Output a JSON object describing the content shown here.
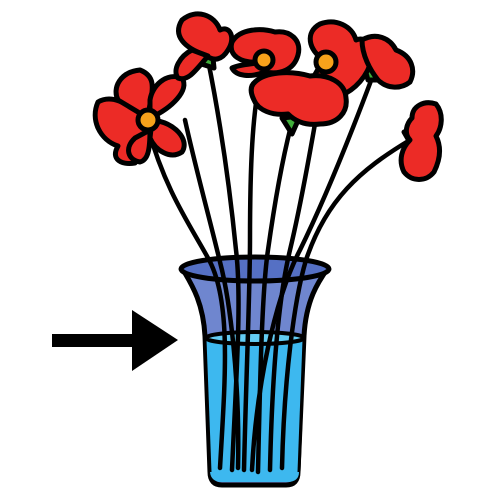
{
  "colors": {
    "background": "#ffffff",
    "outline": "#000000",
    "petal": "#ec2b26",
    "flower_center": "#f7a21b",
    "sepal": "#3fae3a",
    "vase_glass": "#6f86cf",
    "vase_rim": "#5570c4",
    "water": "#3db8ef",
    "water_top": "#63ccf3",
    "arrow": "#000000"
  },
  "icons": {
    "arrow": "arrow-right-icon",
    "bouquet": "poppy-flower-icon",
    "vase": "glass-vase-icon"
  }
}
